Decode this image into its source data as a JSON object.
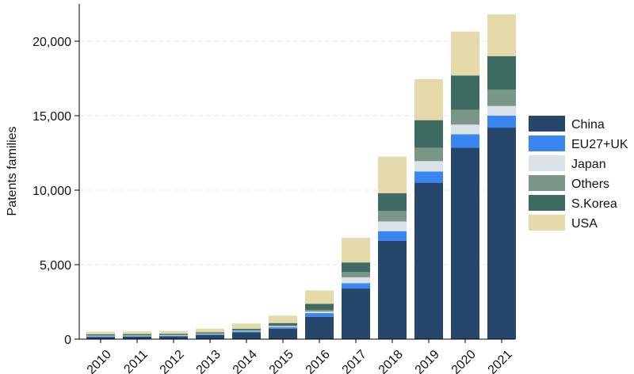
{
  "chart_data": {
    "type": "bar",
    "stacked": true,
    "categories": [
      "2010",
      "2011",
      "2012",
      "2013",
      "2014",
      "2015",
      "2016",
      "2017",
      "2018",
      "2019",
      "2020",
      "2021"
    ],
    "ylabel": "Patents families",
    "xlabel": "",
    "ylim": [
      0,
      22500
    ],
    "yticks": [
      0,
      5000,
      10000,
      15000,
      20000
    ],
    "ytick_labels": [
      "0",
      "5,000",
      "10,000",
      "15,000",
      "20,000"
    ],
    "grid": true,
    "legend_position": "right",
    "series": [
      {
        "name": "China",
        "color": "#26476b",
        "values": [
          150,
          160,
          180,
          280,
          450,
          700,
          1500,
          3400,
          6600,
          10500,
          12850,
          14200
        ]
      },
      {
        "name": "EU27+UK",
        "color": "#3a86f0",
        "values": [
          40,
          40,
          40,
          40,
          60,
          100,
          250,
          350,
          650,
          750,
          900,
          800
        ]
      },
      {
        "name": "Japan",
        "color": "#dbe3e8",
        "values": [
          30,
          30,
          30,
          30,
          40,
          60,
          100,
          400,
          650,
          700,
          650,
          650
        ]
      },
      {
        "name": "Others",
        "color": "#7a9687",
        "values": [
          30,
          30,
          30,
          30,
          50,
          70,
          120,
          350,
          700,
          900,
          1000,
          1100
        ]
      },
      {
        "name": "S.Korea",
        "color": "#3e6b61",
        "values": [
          80,
          80,
          80,
          80,
          100,
          150,
          400,
          650,
          1200,
          1850,
          2300,
          2250
        ]
      },
      {
        "name": "USA",
        "color": "#e6d9a9",
        "values": [
          170,
          180,
          190,
          240,
          350,
          500,
          900,
          1650,
          2450,
          2750,
          2950,
          2800
        ]
      }
    ]
  }
}
